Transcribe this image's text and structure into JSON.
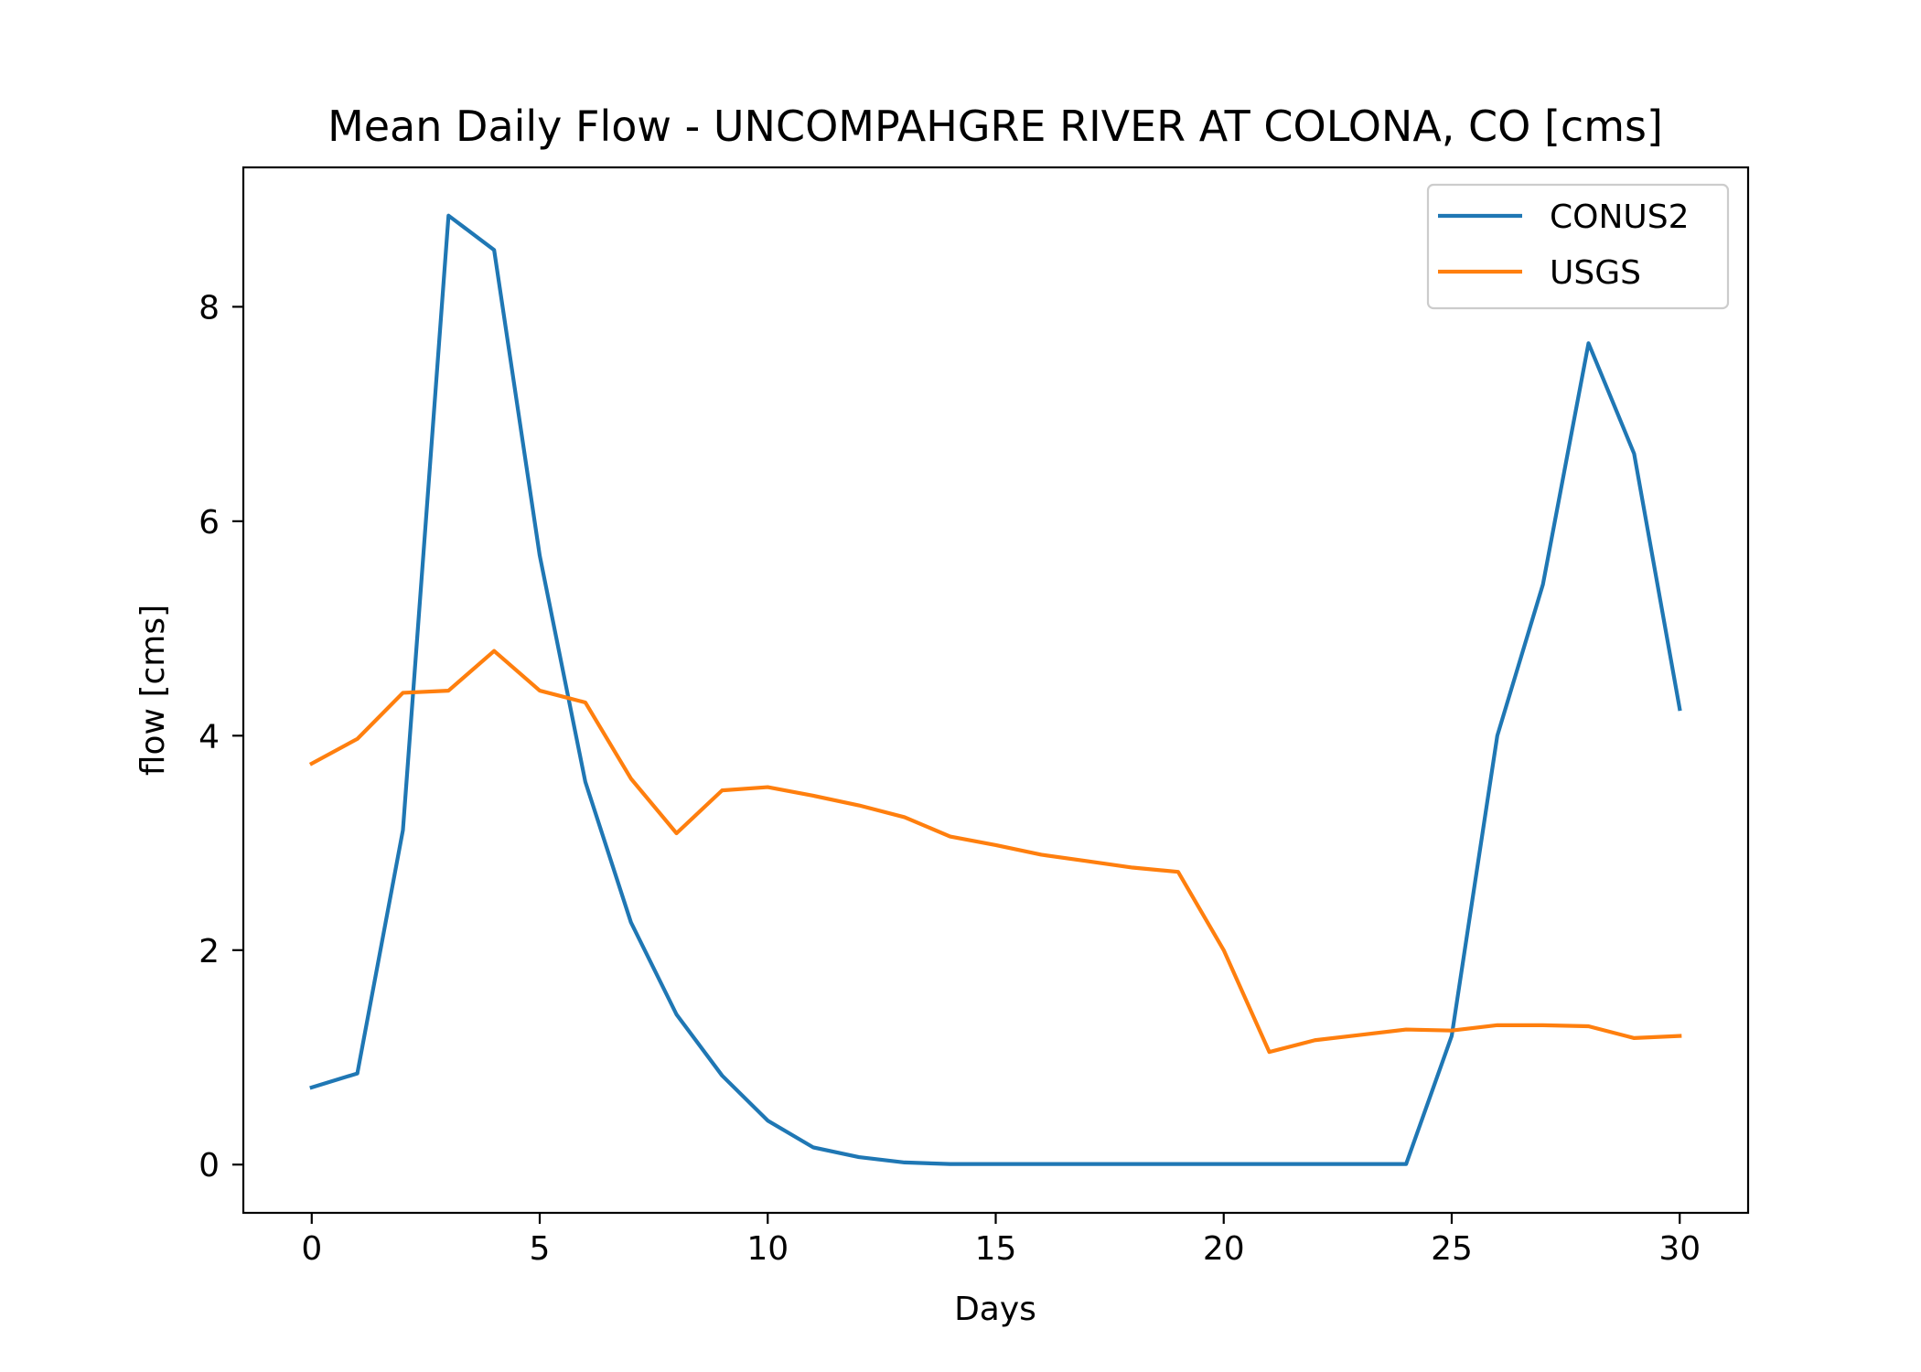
{
  "chart_data": {
    "type": "line",
    "title": "Mean Daily Flow - UNCOMPAHGRE RIVER AT COLONA, CO [cms]",
    "xlabel": "Days",
    "ylabel": "flow [cms]",
    "xlim": [
      -1.5,
      31.5
    ],
    "ylim": [
      -0.45,
      9.3
    ],
    "xticks": [
      0,
      5,
      10,
      15,
      20,
      25,
      30
    ],
    "yticks": [
      0,
      2,
      4,
      6,
      8
    ],
    "grid": false,
    "legend_position": "top-right",
    "x": [
      0,
      1,
      2,
      3,
      4,
      5,
      6,
      7,
      8,
      9,
      10,
      11,
      12,
      13,
      14,
      15,
      16,
      17,
      18,
      19,
      20,
      21,
      22,
      23,
      24,
      25,
      26,
      27,
      28,
      29,
      30
    ],
    "series": [
      {
        "name": "CONUS2",
        "color": "#1f77b4",
        "values": [
          0.72,
          0.85,
          3.12,
          8.85,
          8.53,
          5.68,
          3.57,
          2.26,
          1.4,
          0.83,
          0.41,
          0.16,
          0.07,
          0.02,
          0.005,
          0.005,
          0.005,
          0.005,
          0.005,
          0.005,
          0.005,
          0.005,
          0.005,
          0.005,
          0.005,
          1.2,
          4.0,
          5.41,
          7.66,
          6.63,
          4.25
        ]
      },
      {
        "name": "USGS",
        "color": "#ff7f0e",
        "values": [
          3.74,
          3.97,
          4.4,
          4.42,
          4.79,
          4.42,
          4.31,
          3.6,
          3.09,
          3.49,
          3.52,
          3.44,
          3.35,
          3.24,
          3.06,
          2.98,
          2.89,
          2.83,
          2.77,
          2.73,
          2.0,
          1.05,
          1.16,
          1.21,
          1.26,
          1.25,
          1.3,
          1.3,
          1.29,
          1.18,
          1.2
        ]
      }
    ]
  }
}
